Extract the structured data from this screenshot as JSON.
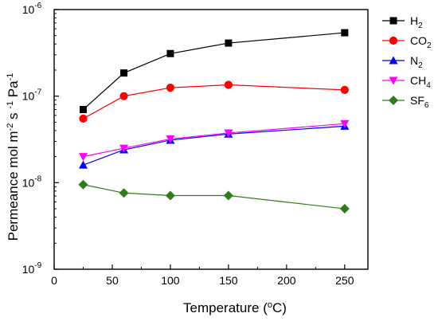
{
  "chart_data": {
    "type": "scatter",
    "xlabel": "Temperature",
    "xlabel_unit": "(°C)",
    "ylabel": "Permeance mol m",
    "ylabel_units": [
      "-2",
      "s",
      "-1",
      "Pa",
      "-1"
    ],
    "xlim": [
      0,
      270
    ],
    "ylim": [
      1e-09,
      1e-06
    ],
    "y_scale": "log",
    "grid": false,
    "legend_position": "top-right",
    "x_ticks": [
      0,
      50,
      100,
      150,
      200,
      250
    ],
    "y_ticks": [
      {
        "value": 1e-09,
        "base": "10",
        "exp": "-9"
      },
      {
        "value": 1e-08,
        "base": "10",
        "exp": "-8"
      },
      {
        "value": 1e-07,
        "base": "10",
        "exp": "-7"
      },
      {
        "value": 1e-06,
        "base": "10",
        "exp": "-6"
      }
    ],
    "x": [
      25,
      60,
      100,
      150,
      250
    ],
    "series": [
      {
        "name": "H2",
        "name_main": "H",
        "name_sub": "2",
        "color": "#000000",
        "marker": "square",
        "values": [
          7e-08,
          1.85e-07,
          3.1e-07,
          4.1e-07,
          5.4e-07
        ]
      },
      {
        "name": "CO2",
        "name_main": "CO",
        "name_sub": "2",
        "color": "#ff0000",
        "marker": "circle",
        "values": [
          5.5e-08,
          1e-07,
          1.25e-07,
          1.35e-07,
          1.18e-07
        ]
      },
      {
        "name": "N2",
        "name_main": "N",
        "name_sub": "2",
        "color": "#0000ff",
        "marker": "triangle-up",
        "values": [
          1.6e-08,
          2.4e-08,
          3.1e-08,
          3.65e-08,
          4.5e-08
        ]
      },
      {
        "name": "CH4",
        "name_main": "CH",
        "name_sub": "4",
        "color": "#ff00ff",
        "marker": "triangle-down",
        "values": [
          2e-08,
          2.5e-08,
          3.2e-08,
          3.75e-08,
          4.8e-08
        ]
      },
      {
        "name": "SF6",
        "name_main": "SF",
        "name_sub": "6",
        "color": "#2e7d1a",
        "marker": "diamond",
        "values": [
          9.5e-09,
          7.6e-09,
          7.1e-09,
          7.1e-09,
          5e-09
        ]
      }
    ]
  }
}
